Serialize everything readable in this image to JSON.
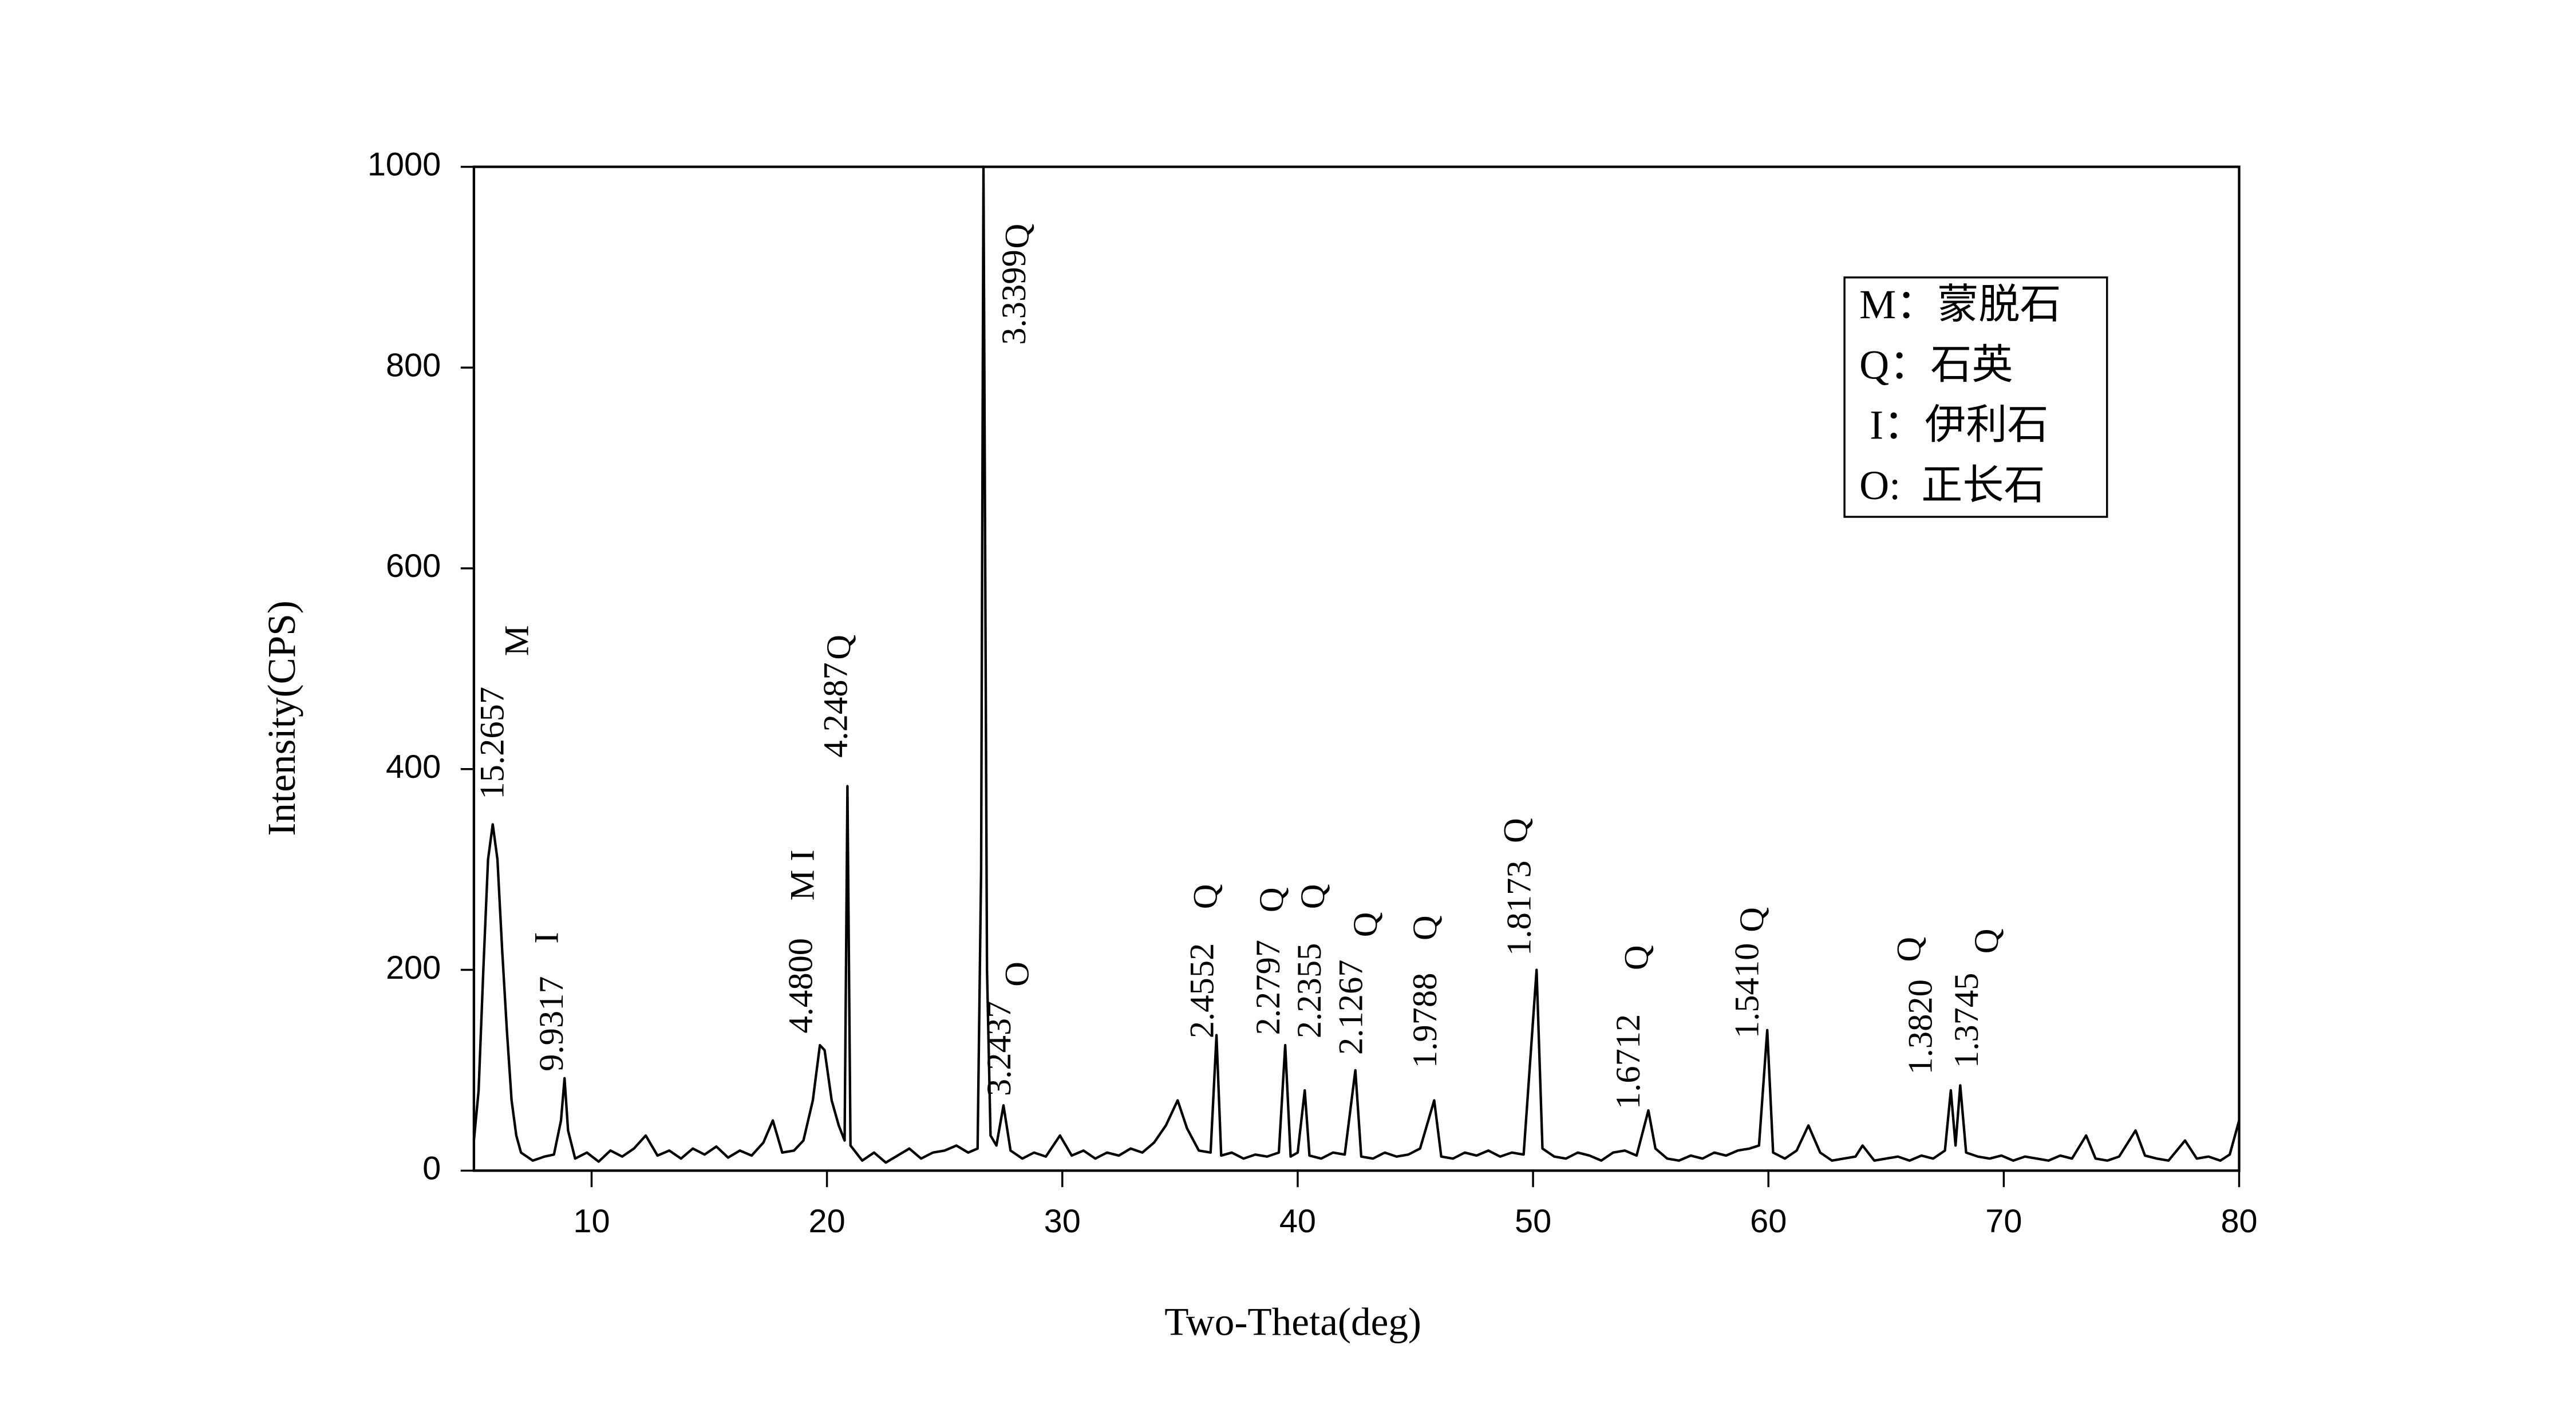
{
  "chart_data": {
    "type": "line",
    "x_label": "Two-Theta(deg)",
    "y_label": "Intensity(CPS)",
    "color": "#000000",
    "xlim": [
      5,
      80
    ],
    "xticks": [
      10,
      20,
      30,
      40,
      50,
      60,
      70,
      80
    ],
    "ylim": [
      0,
      1000
    ],
    "yticks": [
      0,
      200,
      400,
      600,
      800,
      1000
    ],
    "x": [
      5.0,
      5.2,
      5.4,
      5.6,
      5.8,
      6.0,
      6.2,
      6.4,
      6.6,
      6.8,
      7.0,
      7.5,
      8.0,
      8.4,
      8.7,
      8.85,
      9.0,
      9.3,
      9.8,
      10.3,
      10.8,
      11.3,
      11.8,
      12.3,
      12.8,
      13.3,
      13.8,
      14.3,
      14.8,
      15.3,
      15.8,
      16.3,
      16.8,
      17.3,
      17.7,
      18.1,
      18.6,
      19.0,
      19.4,
      19.7,
      19.9,
      20.2,
      20.5,
      20.75,
      20.87,
      21.0,
      21.5,
      22.0,
      22.5,
      23.0,
      23.5,
      24.0,
      24.5,
      25.0,
      25.5,
      26.0,
      26.4,
      26.55,
      26.65,
      26.8,
      26.95,
      27.2,
      27.5,
      27.8,
      28.3,
      28.8,
      29.3,
      29.9,
      30.4,
      30.9,
      31.4,
      31.9,
      32.4,
      32.9,
      33.4,
      33.9,
      34.4,
      34.9,
      35.3,
      35.8,
      36.3,
      36.55,
      36.75,
      37.2,
      37.7,
      38.2,
      38.7,
      39.2,
      39.47,
      39.7,
      40.0,
      40.3,
      40.5,
      41.0,
      41.5,
      42.0,
      42.45,
      42.7,
      43.2,
      43.7,
      44.2,
      44.7,
      45.2,
      45.8,
      46.1,
      46.6,
      47.1,
      47.6,
      48.1,
      48.6,
      49.1,
      49.6,
      50.15,
      50.4,
      50.9,
      51.4,
      51.9,
      52.4,
      52.9,
      53.4,
      53.9,
      54.4,
      54.9,
      55.2,
      55.7,
      56.2,
      56.7,
      57.2,
      57.7,
      58.2,
      58.7,
      59.2,
      59.6,
      59.95,
      60.2,
      60.7,
      61.2,
      61.7,
      62.2,
      62.7,
      63.2,
      63.7,
      64.0,
      64.5,
      65.0,
      65.5,
      66.0,
      66.5,
      67.0,
      67.5,
      67.75,
      67.95,
      68.15,
      68.4,
      68.9,
      69.4,
      69.9,
      70.4,
      70.9,
      71.4,
      71.9,
      72.4,
      72.9,
      73.5,
      73.9,
      74.4,
      74.9,
      75.6,
      76.0,
      76.5,
      77.0,
      77.7,
      78.2,
      78.7,
      79.2,
      79.6,
      80.0
    ],
    "values": [
      30,
      80,
      200,
      310,
      345,
      310,
      220,
      140,
      70,
      35,
      18,
      10,
      14,
      16,
      50,
      92,
      40,
      12,
      18,
      9,
      20,
      14,
      22,
      35,
      15,
      20,
      12,
      22,
      16,
      24,
      13,
      20,
      15,
      28,
      50,
      18,
      20,
      30,
      70,
      125,
      120,
      70,
      45,
      30,
      383,
      25,
      10,
      18,
      8,
      15,
      22,
      12,
      18,
      20,
      25,
      18,
      22,
      300,
      1000,
      200,
      35,
      25,
      65,
      20,
      12,
      18,
      14,
      35,
      15,
      20,
      12,
      18,
      15,
      22,
      18,
      28,
      45,
      70,
      42,
      20,
      18,
      135,
      15,
      18,
      12,
      16,
      14,
      18,
      125,
      14,
      18,
      80,
      15,
      12,
      18,
      16,
      100,
      14,
      12,
      18,
      14,
      16,
      22,
      70,
      14,
      12,
      18,
      15,
      20,
      14,
      18,
      16,
      200,
      22,
      14,
      12,
      18,
      15,
      10,
      18,
      20,
      15,
      60,
      22,
      12,
      10,
      15,
      12,
      18,
      15,
      20,
      22,
      25,
      140,
      18,
      12,
      20,
      45,
      18,
      10,
      12,
      14,
      25,
      10,
      12,
      14,
      10,
      15,
      12,
      20,
      80,
      25,
      85,
      18,
      14,
      12,
      15,
      10,
      14,
      12,
      10,
      15,
      12,
      35,
      12,
      10,
      14,
      40,
      15,
      12,
      10,
      30,
      12,
      14,
      10,
      16,
      50
    ],
    "annotations": [
      "15.2657",
      "M",
      "9.9317",
      "I",
      "4.4800",
      "M I",
      "4.2487",
      "Q",
      "3.3399",
      "Q",
      "3.2437",
      "O",
      "2.4552",
      "Q",
      "2.2797",
      "Q",
      "2.2355",
      "Q",
      "2.1267",
      "Q",
      "1.9788",
      "Q",
      "1.8173",
      "Q",
      "1.6712",
      "Q",
      "1.5410",
      "Q",
      "1.3820",
      "Q",
      "1.3745",
      "Q"
    ],
    "legend_entries": [
      "M：蒙脱石",
      "Q：石英",
      " I：伊利石",
      "O:  正长石"
    ]
  }
}
